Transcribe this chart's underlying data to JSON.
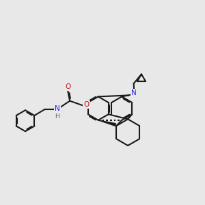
{
  "bg": "#e8e8e8",
  "bc": "#1a1a1a",
  "Nc": "#2222ee",
  "Oc": "#cc1111",
  "Hc": "#606060",
  "lw": 1.5,
  "dbo": 0.05,
  "figsize": [
    3.0,
    3.0
  ],
  "dpi": 100,
  "xlim": [
    0,
    10
  ],
  "ylim": [
    2.0,
    9.5
  ]
}
